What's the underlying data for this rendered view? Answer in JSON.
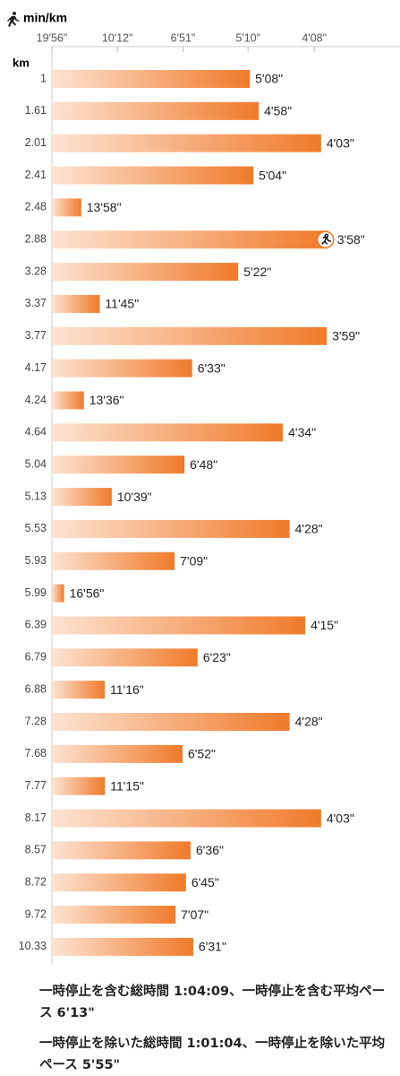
{
  "chart_data": {
    "type": "bar",
    "orientation": "horizontal",
    "scale": "reciprocal",
    "x_label": "min/km",
    "y_label": "km",
    "categories": [
      "1",
      "1.61",
      "2.01",
      "2.41",
      "2.48",
      "2.88",
      "3.28",
      "3.37",
      "3.77",
      "4.17",
      "4.24",
      "4.64",
      "5.04",
      "5.13",
      "5.53",
      "5.93",
      "5.99",
      "6.39",
      "6.79",
      "6.88",
      "7.28",
      "7.68",
      "7.77",
      "8.17",
      "8.57",
      "8.72",
      "9.72",
      "10.33"
    ],
    "values": [
      308,
      298,
      243,
      304,
      838,
      238,
      322,
      705,
      239,
      393,
      816,
      274,
      408,
      639,
      268,
      429,
      1016,
      255,
      383,
      676,
      268,
      412,
      675,
      243,
      396,
      405,
      427,
      391
    ],
    "value_labels": [
      "5'08\"",
      "4'58\"",
      "4'03\"",
      "5'04\"",
      "13'58\"",
      "3'58\"",
      "5'22\"",
      "11'45\"",
      "3'59\"",
      "6'33\"",
      "13'36\"",
      "4'34\"",
      "6'48\"",
      "10'39\"",
      "4'28\"",
      "7'09\"",
      "16'56\"",
      "4'15\"",
      "6'23\"",
      "11'16\"",
      "4'28\"",
      "6'52\"",
      "11'15\"",
      "4'03\"",
      "6'36\"",
      "6'45\"",
      "7'07\"",
      "6'31\""
    ],
    "color": "#f07a2a",
    "color_light": "#fde3d2",
    "xlim": [
      1196,
      200
    ],
    "xticks": [
      {
        "value": 1196,
        "label": "19'56\""
      },
      {
        "value": 612,
        "label": "10'12\""
      },
      {
        "value": 411,
        "label": "6'51\""
      },
      {
        "value": 310,
        "label": "5'10\""
      },
      {
        "value": 248,
        "label": "4'08\""
      }
    ]
  },
  "notes": [
    "一時停止を含む総時間 1:04:09、一時停止を含む平均ペース 6'13\"",
    "一時停止を除いた総時間 1:01:04、一時停止を除いた平均ペース 5'55\""
  ]
}
